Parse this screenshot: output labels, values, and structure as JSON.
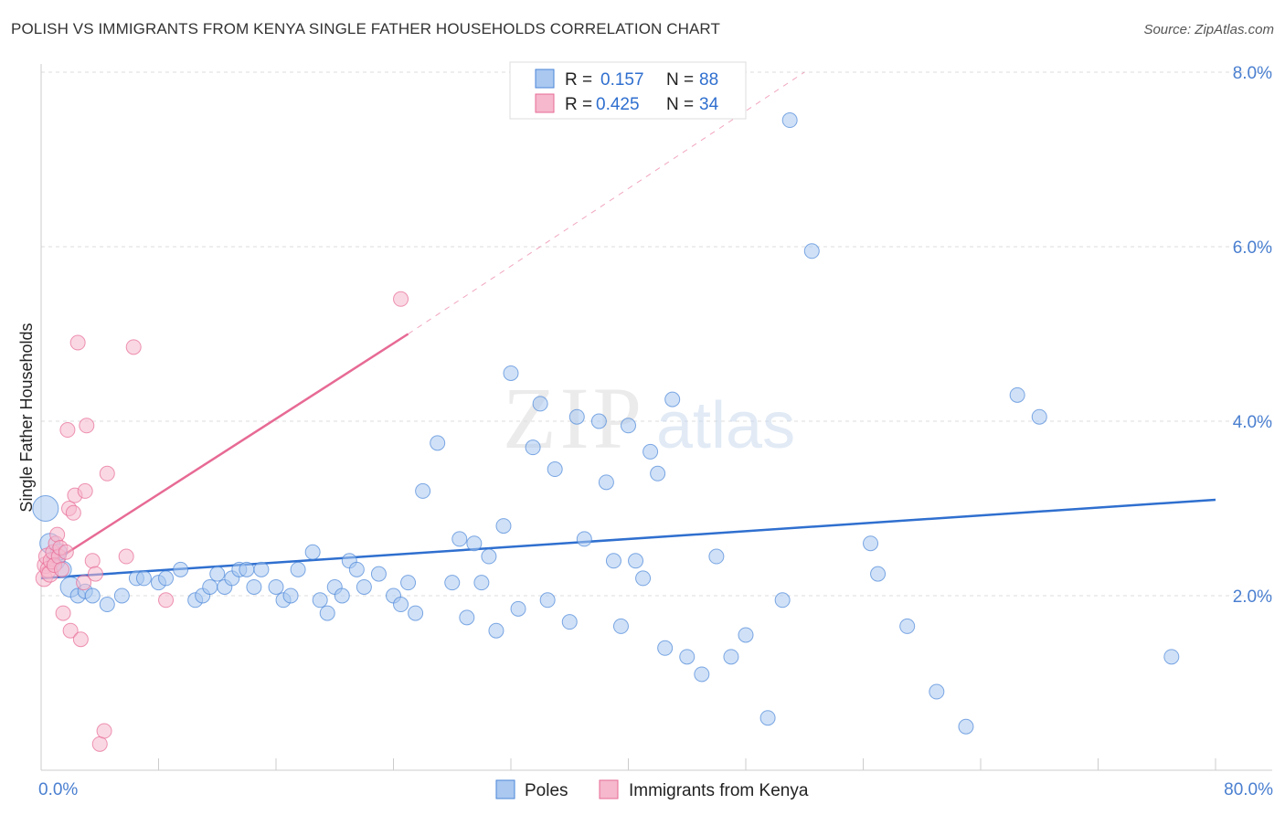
{
  "title": "POLISH VS IMMIGRANTS FROM KENYA SINGLE FATHER HOUSEHOLDS CORRELATION CHART",
  "source": "Source: ZipAtlas.com",
  "watermark": {
    "zip": "ZIP",
    "atlas": "atlas"
  },
  "colors": {
    "blue": "#4a86d8",
    "blue_fill": "#aac8f0",
    "blue_line": "#2f6fcf",
    "pink": "#e76a95",
    "pink_fill": "#f5b8cc",
    "tick_text": "#4a7fd0",
    "grid": "#dddddd"
  },
  "legend": {
    "r_label": "R =",
    "n_label": "N =",
    "rows": [
      {
        "r": "0.157",
        "n": "88",
        "color": "blue"
      },
      {
        "r": "0.425",
        "n": "34",
        "color": "pink"
      }
    ]
  },
  "bottom_legend": [
    {
      "label": "Poles",
      "color": "blue"
    },
    {
      "label": "Immigrants from Kenya",
      "color": "pink"
    }
  ],
  "chart_data": {
    "type": "scatter",
    "title": "POLISH VS IMMIGRANTS FROM KENYA SINGLE FATHER HOUSEHOLDS CORRELATION CHART",
    "xlabel": "",
    "ylabel": "Single Father Households",
    "xlim": [
      0,
      80
    ],
    "ylim": [
      0,
      8
    ],
    "x_tick_labels": [
      "0.0%",
      "80.0%"
    ],
    "y_ticks": [
      2,
      4,
      6,
      8
    ],
    "y_tick_labels": [
      "2.0%",
      "4.0%",
      "6.0%",
      "8.0%"
    ],
    "grid": "horizontal dashed",
    "legend_position": "top-center",
    "series": [
      {
        "name": "Poles",
        "color": "blue",
        "r": 0.157,
        "n": 88,
        "trend": {
          "x": [
            0,
            80
          ],
          "y": [
            2.2,
            3.1
          ],
          "style": "solid"
        },
        "points": [
          [
            0.3,
            3.0,
            14
          ],
          [
            0.6,
            2.6,
            11
          ],
          [
            1.0,
            2.4,
            10
          ],
          [
            1.2,
            2.5,
            9
          ],
          [
            1.5,
            2.3,
            9
          ],
          [
            2.0,
            2.1,
            11
          ],
          [
            2.5,
            2.0,
            8
          ],
          [
            3.0,
            2.05,
            8
          ],
          [
            3.5,
            2.0,
            8
          ],
          [
            4.5,
            1.9,
            8
          ],
          [
            5.5,
            2.0,
            8
          ],
          [
            6.5,
            2.2,
            8
          ],
          [
            7.0,
            2.2,
            8
          ],
          [
            8.0,
            2.15,
            8
          ],
          [
            8.5,
            2.2,
            8
          ],
          [
            9.5,
            2.3,
            8
          ],
          [
            10.5,
            1.95,
            8
          ],
          [
            11.0,
            2.0,
            8
          ],
          [
            11.5,
            2.1,
            8
          ],
          [
            12.0,
            2.25,
            8
          ],
          [
            12.5,
            2.1,
            8
          ],
          [
            13.0,
            2.2,
            8
          ],
          [
            13.5,
            2.3,
            8
          ],
          [
            14.0,
            2.3,
            8
          ],
          [
            14.5,
            2.1,
            8
          ],
          [
            15.0,
            2.3,
            8
          ],
          [
            16.0,
            2.1,
            8
          ],
          [
            16.5,
            1.95,
            8
          ],
          [
            17.0,
            2.0,
            8
          ],
          [
            17.5,
            2.3,
            8
          ],
          [
            18.5,
            2.5,
            8
          ],
          [
            19.0,
            1.95,
            8
          ],
          [
            19.5,
            1.8,
            8
          ],
          [
            20.0,
            2.1,
            8
          ],
          [
            20.5,
            2.0,
            8
          ],
          [
            21.0,
            2.4,
            8
          ],
          [
            21.5,
            2.3,
            8
          ],
          [
            22.0,
            2.1,
            8
          ],
          [
            23.0,
            2.25,
            8
          ],
          [
            24.0,
            2.0,
            8
          ],
          [
            24.5,
            1.9,
            8
          ],
          [
            25.0,
            2.15,
            8
          ],
          [
            25.5,
            1.8,
            8
          ],
          [
            26.0,
            3.2,
            8
          ],
          [
            27.0,
            3.75,
            8
          ],
          [
            28.0,
            2.15,
            8
          ],
          [
            28.5,
            2.65,
            8
          ],
          [
            29.0,
            1.75,
            8
          ],
          [
            29.5,
            2.6,
            8
          ],
          [
            30.0,
            2.15,
            8
          ],
          [
            30.5,
            2.45,
            8
          ],
          [
            31.0,
            1.6,
            8
          ],
          [
            31.5,
            2.8,
            8
          ],
          [
            32.0,
            4.55,
            8
          ],
          [
            32.5,
            1.85,
            8
          ],
          [
            33.5,
            3.7,
            8
          ],
          [
            34.0,
            4.2,
            8
          ],
          [
            34.5,
            1.95,
            8
          ],
          [
            35.0,
            3.45,
            8
          ],
          [
            36.0,
            1.7,
            8
          ],
          [
            36.5,
            4.05,
            8
          ],
          [
            37.0,
            2.65,
            8
          ],
          [
            38.0,
            4.0,
            8
          ],
          [
            38.5,
            3.3,
            8
          ],
          [
            39.0,
            2.4,
            8
          ],
          [
            39.5,
            1.65,
            8
          ],
          [
            40.0,
            3.95,
            8
          ],
          [
            40.5,
            2.4,
            8
          ],
          [
            41.0,
            2.2,
            8
          ],
          [
            41.5,
            3.65,
            8
          ],
          [
            42.0,
            3.4,
            8
          ],
          [
            42.5,
            1.4,
            8
          ],
          [
            43.0,
            4.25,
            8
          ],
          [
            44.0,
            1.3,
            8
          ],
          [
            45.0,
            1.1,
            8
          ],
          [
            46.0,
            2.45,
            8
          ],
          [
            47.0,
            1.3,
            8
          ],
          [
            48.0,
            1.55,
            8
          ],
          [
            49.5,
            0.6,
            8
          ],
          [
            50.5,
            1.95,
            8
          ],
          [
            51.0,
            7.45,
            8
          ],
          [
            52.5,
            5.95,
            8
          ],
          [
            56.5,
            2.6,
            8
          ],
          [
            57.0,
            2.25,
            8
          ],
          [
            59.0,
            1.65,
            8
          ],
          [
            61.0,
            0.9,
            8
          ],
          [
            63.0,
            0.5,
            8
          ],
          [
            66.5,
            4.3,
            8
          ],
          [
            68.0,
            4.05,
            8
          ],
          [
            77.0,
            1.3,
            8
          ]
        ]
      },
      {
        "name": "Immigrants from Kenya",
        "color": "pink",
        "r": 0.425,
        "n": 34,
        "trend": {
          "x": [
            0,
            25
          ],
          "y": [
            2.3,
            5.0
          ],
          "style": "solid",
          "extended": {
            "x": [
              25,
              52
            ],
            "y": [
              5.0,
              8.0
            ],
            "style": "dashed"
          }
        },
        "points": [
          [
            0.2,
            2.2,
            9
          ],
          [
            0.3,
            2.35,
            9
          ],
          [
            0.4,
            2.45,
            9
          ],
          [
            0.5,
            2.3,
            9
          ],
          [
            0.6,
            2.25,
            9
          ],
          [
            0.7,
            2.4,
            9
          ],
          [
            0.8,
            2.5,
            8
          ],
          [
            0.9,
            2.35,
            8
          ],
          [
            1.0,
            2.6,
            8
          ],
          [
            1.1,
            2.7,
            8
          ],
          [
            1.2,
            2.45,
            8
          ],
          [
            1.3,
            2.55,
            8
          ],
          [
            1.4,
            2.3,
            8
          ],
          [
            1.5,
            1.8,
            8
          ],
          [
            1.7,
            2.5,
            8
          ],
          [
            1.8,
            3.9,
            8
          ],
          [
            1.9,
            3.0,
            8
          ],
          [
            2.0,
            1.6,
            8
          ],
          [
            2.2,
            2.95,
            8
          ],
          [
            2.3,
            3.15,
            8
          ],
          [
            2.5,
            4.9,
            8
          ],
          [
            2.7,
            1.5,
            8
          ],
          [
            2.9,
            2.15,
            8
          ],
          [
            3.0,
            3.2,
            8
          ],
          [
            3.1,
            3.95,
            8
          ],
          [
            3.5,
            2.4,
            8
          ],
          [
            3.7,
            2.25,
            8
          ],
          [
            4.0,
            0.3,
            8
          ],
          [
            4.3,
            0.45,
            8
          ],
          [
            4.5,
            3.4,
            8
          ],
          [
            5.8,
            2.45,
            8
          ],
          [
            6.3,
            4.85,
            8
          ],
          [
            8.5,
            1.95,
            8
          ],
          [
            24.5,
            5.4,
            8
          ]
        ]
      }
    ]
  }
}
